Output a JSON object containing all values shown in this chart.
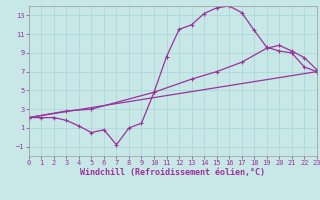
{
  "xlabel": "Windchill (Refroidissement éolien,°C)",
  "bg_color": "#c8e8e8",
  "line_color": "#993399",
  "xlim": [
    0,
    23
  ],
  "ylim": [
    -2,
    14
  ],
  "xticks": [
    0,
    1,
    2,
    3,
    4,
    5,
    6,
    7,
    8,
    9,
    10,
    11,
    12,
    13,
    14,
    15,
    16,
    17,
    18,
    19,
    20,
    21,
    22,
    23
  ],
  "yticks": [
    -1,
    1,
    3,
    5,
    7,
    9,
    11,
    13
  ],
  "curve1_x": [
    0,
    1,
    2,
    3,
    4,
    5,
    6,
    7,
    8,
    9,
    10,
    11,
    12,
    13,
    14,
    15,
    16,
    17,
    18,
    19,
    20,
    21,
    22,
    23
  ],
  "curve1_y": [
    2.1,
    2.1,
    2.1,
    1.8,
    1.2,
    0.5,
    0.8,
    -0.8,
    1.0,
    1.5,
    4.8,
    8.6,
    11.5,
    12.0,
    13.2,
    13.8,
    14.0,
    13.3,
    11.4,
    9.6,
    9.2,
    9.0,
    7.5,
    7.0
  ],
  "curve2_x": [
    0,
    23
  ],
  "curve2_y": [
    2.1,
    7.0
  ],
  "curve3_x": [
    0,
    3,
    5,
    10,
    13,
    15,
    17,
    19,
    20,
    21,
    22,
    23
  ],
  "curve3_y": [
    2.1,
    2.8,
    3.0,
    4.8,
    6.2,
    7.0,
    8.0,
    9.5,
    9.8,
    9.2,
    8.5,
    7.2
  ],
  "grid_color": "#a8d4d4",
  "marker": "+",
  "markersize": 3.5,
  "markeredgewidth": 0.8,
  "linewidth": 0.9,
  "tick_fontsize": 5.0,
  "label_fontsize": 6.0
}
